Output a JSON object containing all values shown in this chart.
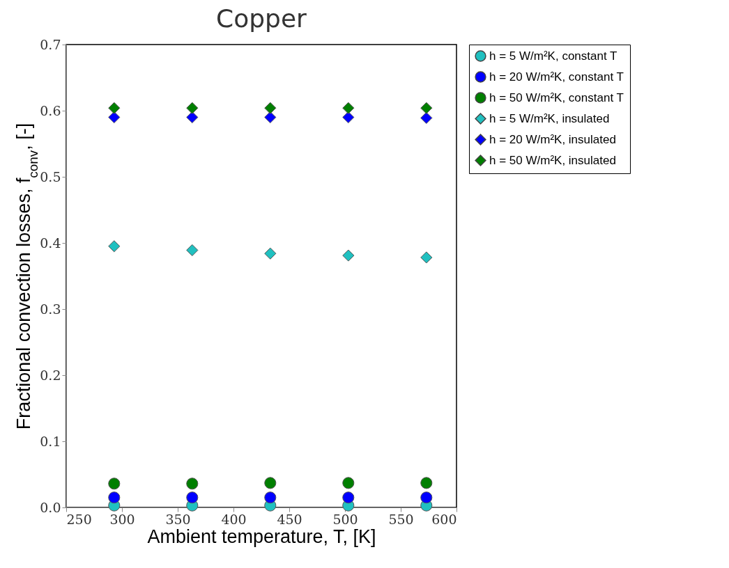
{
  "chart_data": {
    "type": "scatter",
    "title": "Copper",
    "xlabel": "Ambient temperature, T, [K]",
    "ylabel": "Fractional convection losses, f$_{conv}$, [-]",
    "x": [
      293,
      363,
      433,
      503,
      573
    ],
    "xlim": [
      250,
      600
    ],
    "xticks": [
      250,
      300,
      350,
      400,
      450,
      500,
      550,
      600
    ],
    "ylim": [
      0,
      0.7
    ],
    "yticks": [
      {
        "value": 0,
        "label": "0.0"
      },
      0.1,
      0.2,
      0.3,
      0.4,
      0.5,
      0.6,
      0.7
    ],
    "grid": false,
    "legend": "top right",
    "series": [
      {
        "name": "h = 5 W/m²K, constant T",
        "color": "#20c0c0",
        "marker": "circle",
        "values": [
          0.003,
          0.003,
          0.003,
          0.003,
          0.003
        ]
      },
      {
        "name": "h = 20 W/m²K, constant T",
        "color": "#0000ff",
        "marker": "circle",
        "values": [
          0.015,
          0.015,
          0.015,
          0.015,
          0.015
        ]
      },
      {
        "name": "h = 50 W/m²K, constant T",
        "color": "#007f00",
        "marker": "circle",
        "values": [
          0.036,
          0.036,
          0.037,
          0.037,
          0.037
        ]
      },
      {
        "name": "h = 5 W/m²K, insulated",
        "color": "#20c0c0",
        "marker": "diamond",
        "values": [
          0.395,
          0.389,
          0.384,
          0.381,
          0.378
        ]
      },
      {
        "name": "h = 20 W/m²K, insulated",
        "color": "#0000ff",
        "marker": "diamond",
        "values": [
          0.59,
          0.59,
          0.59,
          0.59,
          0.589
        ]
      },
      {
        "name": "h = 50 W/m²K, insulated",
        "color": "#007f00",
        "marker": "diamond",
        "values": [
          0.604,
          0.604,
          0.604,
          0.604,
          0.604
        ]
      }
    ]
  }
}
